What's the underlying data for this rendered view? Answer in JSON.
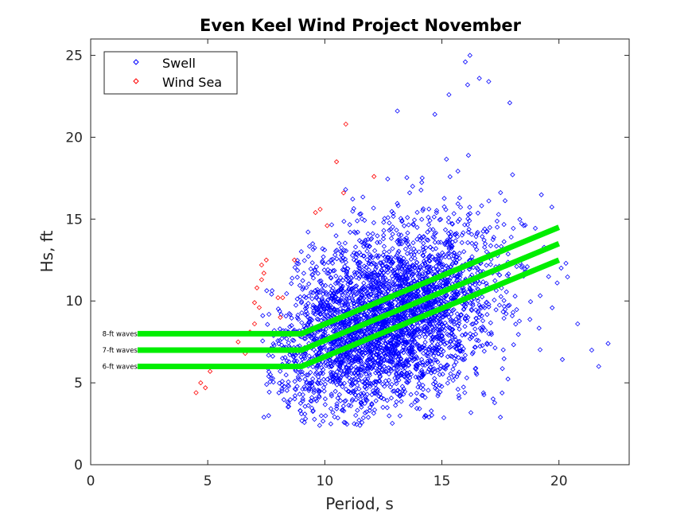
{
  "chart_data": {
    "type": "scatter",
    "title": "Even Keel Wind Project November",
    "xlabel": "Period, s",
    "ylabel": "Hs, ft",
    "xlim": [
      0,
      23
    ],
    "ylim": [
      0,
      26
    ],
    "xticks": [
      0,
      5,
      10,
      15,
      20
    ],
    "yticks": [
      0,
      5,
      10,
      15,
      20,
      25
    ],
    "xtick_labels": [
      "0",
      "5",
      "10",
      "15",
      "20"
    ],
    "ytick_labels": [
      "0",
      "5",
      "10",
      "15",
      "20",
      "25"
    ],
    "grid": false,
    "legend_position": "top-left",
    "series": [
      {
        "name": "Swell",
        "color": "#0000ff",
        "marker": "diamond",
        "cloud": {
          "count": 3600,
          "x_mean": 12.6,
          "x_sd": 2.4,
          "x_range": [
            7.3,
            22.1
          ],
          "y_mean": 8.9,
          "y_sd": 2.9,
          "y_range": [
            2.4,
            25.0
          ],
          "correlation": 0.35
        },
        "points": [
          {
            "x": 16.2,
            "y": 25.0
          },
          {
            "x": 16.0,
            "y": 24.6
          },
          {
            "x": 16.6,
            "y": 23.6
          },
          {
            "x": 17.0,
            "y": 23.4
          },
          {
            "x": 16.1,
            "y": 23.2
          },
          {
            "x": 15.3,
            "y": 22.6
          },
          {
            "x": 17.9,
            "y": 22.1
          },
          {
            "x": 13.1,
            "y": 21.6
          },
          {
            "x": 14.7,
            "y": 21.4
          },
          {
            "x": 22.1,
            "y": 7.4
          },
          {
            "x": 21.4,
            "y": 7.0
          },
          {
            "x": 21.7,
            "y": 6.0
          },
          {
            "x": 20.8,
            "y": 8.6
          },
          {
            "x": 7.4,
            "y": 2.9
          },
          {
            "x": 7.6,
            "y": 3.0
          },
          {
            "x": 11.5,
            "y": 2.4
          },
          {
            "x": 20.3,
            "y": 12.3
          },
          {
            "x": 17.5,
            "y": 2.9
          }
        ]
      },
      {
        "name": "Wind Sea",
        "color": "#ff0000",
        "marker": "diamond",
        "points": [
          {
            "x": 4.5,
            "y": 4.4
          },
          {
            "x": 4.7,
            "y": 5.0
          },
          {
            "x": 4.9,
            "y": 4.7
          },
          {
            "x": 5.1,
            "y": 5.7
          },
          {
            "x": 6.3,
            "y": 7.5
          },
          {
            "x": 6.8,
            "y": 8.1
          },
          {
            "x": 7.0,
            "y": 8.6
          },
          {
            "x": 7.2,
            "y": 9.6
          },
          {
            "x": 7.1,
            "y": 10.8
          },
          {
            "x": 7.3,
            "y": 11.3
          },
          {
            "x": 7.3,
            "y": 12.2
          },
          {
            "x": 7.5,
            "y": 12.5
          },
          {
            "x": 7.4,
            "y": 11.7
          },
          {
            "x": 8.1,
            "y": 9.0
          },
          {
            "x": 8.0,
            "y": 10.2
          },
          {
            "x": 8.2,
            "y": 10.2
          },
          {
            "x": 8.7,
            "y": 12.5
          },
          {
            "x": 9.6,
            "y": 15.4
          },
          {
            "x": 9.8,
            "y": 15.6
          },
          {
            "x": 10.1,
            "y": 14.6
          },
          {
            "x": 10.5,
            "y": 18.5
          },
          {
            "x": 10.9,
            "y": 20.8
          },
          {
            "x": 10.8,
            "y": 16.6
          },
          {
            "x": 12.1,
            "y": 17.6
          },
          {
            "x": 7.0,
            "y": 9.9
          },
          {
            "x": 6.6,
            "y": 6.8
          },
          {
            "x": 5.2,
            "y": 6.0
          }
        ]
      }
    ],
    "threshold_lines": [
      {
        "label": "8-ft waves",
        "color": "#00ee00",
        "x": [
          2,
          9,
          20
        ],
        "y": [
          8,
          8,
          14.5
        ]
      },
      {
        "label": "7-ft waves",
        "color": "#00ee00",
        "x": [
          2,
          9,
          20
        ],
        "y": [
          7,
          7,
          13.5
        ]
      },
      {
        "label": "6-ft waves",
        "color": "#00ee00",
        "x": [
          2,
          9,
          20
        ],
        "y": [
          6,
          6,
          12.5
        ]
      }
    ]
  }
}
